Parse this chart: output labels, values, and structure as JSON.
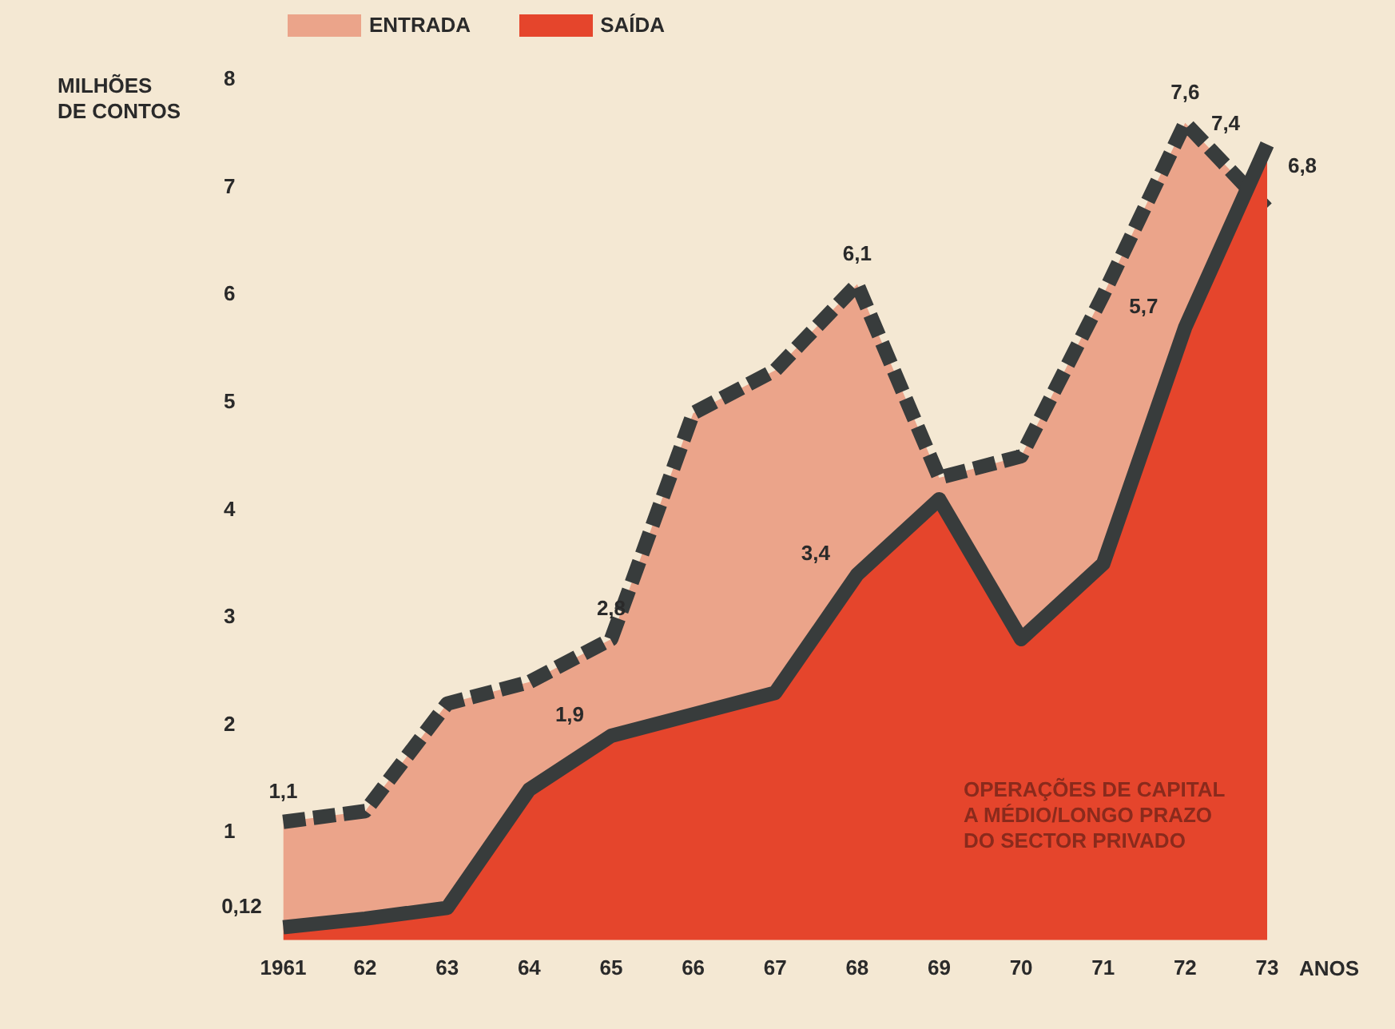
{
  "chart_data": {
    "type": "area",
    "ylabel": "MILHÕES\nDE CONTOS",
    "xlabel": "ANOS",
    "categories": [
      "1961",
      "62",
      "63",
      "64",
      "65",
      "66",
      "67",
      "68",
      "69",
      "70",
      "71",
      "72",
      "73"
    ],
    "series": [
      {
        "name": "ENTRADA",
        "color": "#eba48a",
        "line_style": "dashed",
        "values": [
          1.1,
          1.2,
          2.2,
          2.4,
          2.8,
          4.9,
          5.3,
          6.1,
          4.3,
          4.5,
          6.0,
          7.6,
          6.8
        ],
        "value_labels": [
          "1,1",
          null,
          null,
          null,
          "2,8",
          null,
          null,
          "6,1",
          null,
          null,
          null,
          "7,6",
          "6,8"
        ]
      },
      {
        "name": "SAÍDA",
        "color": "#e5452c",
        "line_style": "solid",
        "values": [
          0.12,
          0.2,
          0.3,
          1.4,
          1.9,
          2.1,
          2.3,
          3.4,
          4.1,
          2.8,
          3.5,
          5.7,
          7.4
        ],
        "value_labels": [
          "0,12",
          null,
          null,
          null,
          "1,9",
          null,
          null,
          "3,4",
          null,
          null,
          null,
          "5,7",
          "7,4"
        ]
      }
    ],
    "ylim": [
      0,
      8
    ],
    "yticks": [
      1,
      2,
      3,
      4,
      5,
      6,
      7,
      8
    ],
    "grid": false,
    "legend": "top left",
    "marker": "none",
    "annotations": [
      "OPERAÇÕES DE CAPITAL\nA MÉDIO/LONGO PRAZO\nDO SECTOR PRIVADO"
    ]
  }
}
